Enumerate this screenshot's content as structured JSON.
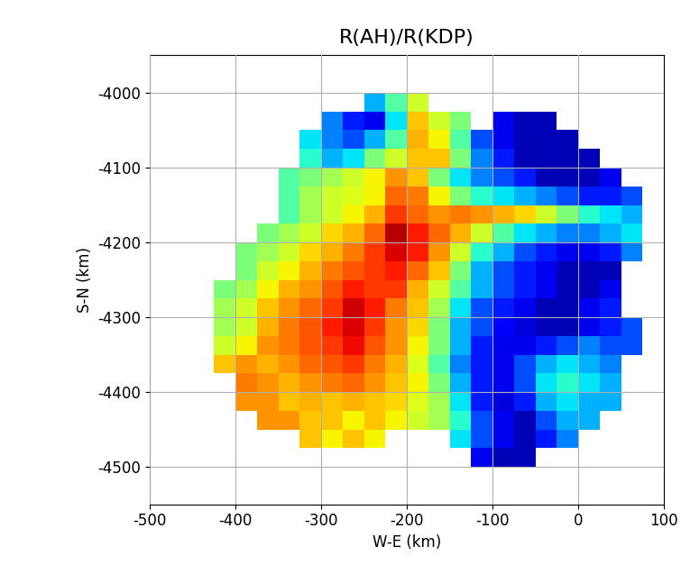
{
  "chart_data": {
    "type": "heatmap",
    "title": "R(AH)/R(KDP)",
    "x_label": "W-E (km)",
    "y_label": "S-N (km)",
    "xlim": [
      -500,
      100
    ],
    "xticks": [
      -500,
      -400,
      -300,
      -200,
      -100,
      0,
      100
    ],
    "ylim": [
      -4550,
      -3950
    ],
    "yticks": [
      -4500,
      -4400,
      -4300,
      -4200,
      -4100,
      -4000
    ],
    "grid": true,
    "color_range": [
      0,
      1
    ],
    "x_edges": [
      -425,
      -400,
      -375,
      -350,
      -325,
      -300,
      -275,
      -250,
      -225,
      -200,
      -175,
      -150,
      -125,
      -100,
      -75,
      -50,
      -25,
      0,
      25,
      50,
      75
    ],
    "y_edges": [
      -4500,
      -4475,
      -4450,
      -4425,
      -4400,
      -4375,
      -4350,
      -4325,
      -4300,
      -4275,
      -4250,
      -4225,
      -4200,
      -4175,
      -4150,
      -4125,
      -4100,
      -4075,
      -4050,
      -4025,
      -4000
    ],
    "cells": [
      [
        null,
        null,
        null,
        null,
        null,
        null,
        null,
        null,
        null,
        null,
        null,
        null,
        0.1,
        0.05,
        0.05,
        null,
        null,
        null,
        null,
        null
      ],
      [
        null,
        null,
        null,
        null,
        0.7,
        0.65,
        0.7,
        0.65,
        null,
        null,
        null,
        0.35,
        0.2,
        0.1,
        0.05,
        0.15,
        0.25,
        null,
        null,
        null
      ],
      [
        null,
        null,
        0.75,
        0.75,
        0.7,
        0.7,
        0.65,
        0.7,
        0.65,
        0.6,
        0.55,
        0.4,
        0.2,
        0.1,
        0.05,
        0.2,
        0.3,
        0.3,
        null,
        null
      ],
      [
        null,
        0.75,
        0.75,
        0.7,
        0.72,
        0.7,
        0.72,
        0.7,
        0.68,
        0.62,
        0.55,
        0.35,
        0.15,
        0.08,
        0.15,
        0.3,
        0.35,
        0.3,
        0.3,
        null
      ],
      [
        null,
        0.78,
        0.75,
        0.72,
        0.75,
        0.78,
        0.8,
        0.75,
        0.7,
        0.65,
        0.5,
        0.3,
        0.15,
        0.1,
        0.2,
        0.35,
        0.4,
        0.35,
        0.3,
        null
      ],
      [
        0.7,
        0.75,
        0.72,
        0.75,
        0.8,
        0.82,
        0.85,
        0.78,
        0.72,
        0.62,
        0.45,
        0.25,
        0.15,
        0.1,
        0.2,
        0.3,
        0.35,
        0.3,
        0.25,
        null
      ],
      [
        0.6,
        0.65,
        0.75,
        0.78,
        0.82,
        0.85,
        0.9,
        0.82,
        0.75,
        0.65,
        0.5,
        0.3,
        0.15,
        0.1,
        0.1,
        0.15,
        0.2,
        0.25,
        0.2,
        0.2
      ],
      [
        0.55,
        0.6,
        0.72,
        0.78,
        0.82,
        0.88,
        0.92,
        0.85,
        0.75,
        0.68,
        0.5,
        0.3,
        0.2,
        0.12,
        0.08,
        0.05,
        0.05,
        0.1,
        0.15,
        0.2
      ],
      [
        0.55,
        0.6,
        0.7,
        0.75,
        0.8,
        0.85,
        0.93,
        0.88,
        0.78,
        0.7,
        0.55,
        0.35,
        0.2,
        0.15,
        0.1,
        0.05,
        0.05,
        0.1,
        0.15,
        null
      ],
      [
        0.5,
        0.55,
        0.65,
        0.72,
        0.75,
        0.82,
        0.88,
        0.85,
        0.85,
        0.72,
        0.6,
        0.45,
        0.3,
        0.2,
        0.15,
        0.1,
        0.05,
        0.05,
        0.1,
        null
      ],
      [
        null,
        0.5,
        0.6,
        0.65,
        0.72,
        0.78,
        0.82,
        0.85,
        0.88,
        0.8,
        0.7,
        0.5,
        0.3,
        0.2,
        0.15,
        0.1,
        0.05,
        0.05,
        0.05,
        null
      ],
      [
        null,
        0.5,
        0.55,
        0.6,
        0.68,
        0.72,
        0.78,
        0.85,
        0.92,
        0.88,
        0.75,
        0.6,
        0.4,
        0.3,
        0.2,
        0.15,
        0.1,
        0.1,
        0.15,
        0.25
      ],
      [
        null,
        null,
        0.5,
        0.55,
        0.6,
        0.68,
        0.72,
        0.8,
        0.95,
        0.88,
        0.8,
        0.72,
        0.6,
        0.45,
        0.35,
        0.3,
        0.25,
        0.25,
        0.3,
        0.35
      ],
      [
        null,
        null,
        null,
        0.45,
        0.55,
        0.6,
        0.65,
        0.72,
        0.85,
        0.8,
        0.75,
        0.78,
        0.75,
        0.72,
        0.68,
        0.6,
        0.5,
        0.4,
        0.35,
        0.3
      ],
      [
        null,
        null,
        null,
        0.45,
        0.55,
        0.6,
        0.62,
        0.65,
        0.8,
        0.78,
        0.65,
        0.5,
        0.4,
        0.35,
        0.3,
        0.25,
        0.2,
        0.15,
        0.15,
        0.2
      ],
      [
        null,
        null,
        null,
        0.45,
        0.5,
        0.55,
        0.6,
        0.65,
        0.75,
        0.7,
        0.5,
        0.35,
        0.25,
        0.2,
        0.15,
        0.05,
        0.05,
        0.05,
        0.1,
        null
      ],
      [
        null,
        null,
        null,
        null,
        0.4,
        0.3,
        0.35,
        0.5,
        0.6,
        0.7,
        0.7,
        0.5,
        0.25,
        0.15,
        0.05,
        0.05,
        0.05,
        0.05,
        null,
        null
      ],
      [
        null,
        null,
        null,
        null,
        0.35,
        0.25,
        0.2,
        0.3,
        0.45,
        0.72,
        0.65,
        0.45,
        0.2,
        0.1,
        0.05,
        0.05,
        0.05,
        null,
        null,
        null
      ],
      [
        null,
        null,
        null,
        null,
        null,
        0.25,
        0.15,
        0.1,
        0.35,
        0.7,
        0.6,
        0.5,
        null,
        0.1,
        0.05,
        0.05,
        null,
        null,
        null,
        null
      ],
      [
        null,
        null,
        null,
        null,
        null,
        null,
        null,
        0.3,
        0.45,
        0.6,
        null,
        null,
        null,
        null,
        null,
        null,
        null,
        null,
        null,
        null
      ]
    ]
  }
}
